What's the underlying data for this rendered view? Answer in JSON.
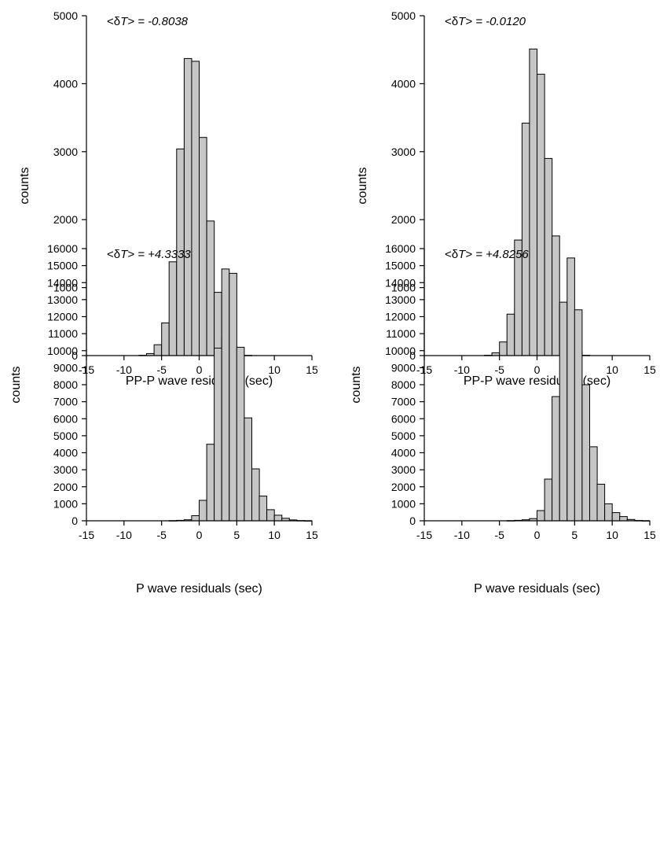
{
  "chart_data": [
    {
      "type": "bar",
      "annotation": {
        "prefix": "<δ",
        "var": "T",
        "suffix": "> = -0.8038"
      },
      "xlabel": "PP-P wave residuals (sec)",
      "ylabel": "counts",
      "xlim": [
        -15,
        15
      ],
      "ylim": [
        0,
        5000
      ],
      "xticks": [
        -15,
        -10,
        -5,
        0,
        5,
        10,
        15
      ],
      "yticks": [
        0,
        1000,
        2000,
        3000,
        4000,
        5000
      ],
      "bin_width": 1,
      "bins": [
        {
          "x0": -15,
          "count": 0
        },
        {
          "x0": -14,
          "count": 0
        },
        {
          "x0": -13,
          "count": 0
        },
        {
          "x0": -12,
          "count": 0
        },
        {
          "x0": -11,
          "count": 0
        },
        {
          "x0": -10,
          "count": 0
        },
        {
          "x0": -9,
          "count": 0
        },
        {
          "x0": -8,
          "count": 5
        },
        {
          "x0": -7,
          "count": 30
        },
        {
          "x0": -6,
          "count": 160
        },
        {
          "x0": -5,
          "count": 480
        },
        {
          "x0": -4,
          "count": 1380
        },
        {
          "x0": -3,
          "count": 3040
        },
        {
          "x0": -2,
          "count": 4370
        },
        {
          "x0": -1,
          "count": 4330
        },
        {
          "x0": 0,
          "count": 3210
        },
        {
          "x0": 1,
          "count": 1980
        },
        {
          "x0": 2,
          "count": 930
        },
        {
          "x0": 3,
          "count": 250
        },
        {
          "x0": 4,
          "count": 80
        },
        {
          "x0": 5,
          "count": 10
        },
        {
          "x0": 6,
          "count": 3
        },
        {
          "x0": 7,
          "count": 0
        },
        {
          "x0": 8,
          "count": 0
        },
        {
          "x0": 9,
          "count": 0
        },
        {
          "x0": 10,
          "count": 0
        },
        {
          "x0": 11,
          "count": 0
        },
        {
          "x0": 12,
          "count": 0
        },
        {
          "x0": 13,
          "count": 0
        },
        {
          "x0": 14,
          "count": 0
        }
      ]
    },
    {
      "type": "bar",
      "annotation": {
        "prefix": "<δ",
        "var": "T",
        "suffix": "> = -0.0120"
      },
      "xlabel": "PP-P wave residuals (sec)",
      "ylabel": "counts",
      "xlim": [
        -15,
        15
      ],
      "ylim": [
        0,
        5000
      ],
      "xticks": [
        -15,
        -10,
        -5,
        0,
        5,
        10,
        15
      ],
      "yticks": [
        0,
        1000,
        2000,
        3000,
        4000,
        5000
      ],
      "bin_width": 1,
      "bins": [
        {
          "x0": -15,
          "count": 0
        },
        {
          "x0": -14,
          "count": 0
        },
        {
          "x0": -13,
          "count": 0
        },
        {
          "x0": -12,
          "count": 0
        },
        {
          "x0": -11,
          "count": 0
        },
        {
          "x0": -10,
          "count": 0
        },
        {
          "x0": -9,
          "count": 0
        },
        {
          "x0": -8,
          "count": 0
        },
        {
          "x0": -7,
          "count": 5
        },
        {
          "x0": -6,
          "count": 40
        },
        {
          "x0": -5,
          "count": 200
        },
        {
          "x0": -4,
          "count": 610
        },
        {
          "x0": -3,
          "count": 1700
        },
        {
          "x0": -2,
          "count": 3420
        },
        {
          "x0": -1,
          "count": 4510
        },
        {
          "x0": 0,
          "count": 4140
        },
        {
          "x0": 1,
          "count": 2900
        },
        {
          "x0": 2,
          "count": 1760
        },
        {
          "x0": 3,
          "count": 740
        },
        {
          "x0": 4,
          "count": 200
        },
        {
          "x0": 5,
          "count": 60
        },
        {
          "x0": 6,
          "count": 5
        },
        {
          "x0": 7,
          "count": 0
        },
        {
          "x0": 8,
          "count": 0
        },
        {
          "x0": 9,
          "count": 0
        },
        {
          "x0": 10,
          "count": 0
        },
        {
          "x0": 11,
          "count": 0
        },
        {
          "x0": 12,
          "count": 0
        },
        {
          "x0": 13,
          "count": 0
        },
        {
          "x0": 14,
          "count": 0
        }
      ]
    },
    {
      "type": "bar",
      "annotation": {
        "prefix": "<δ",
        "var": "T",
        "suffix": "> = +4.3333"
      },
      "xlabel": "P wave residuals (sec)",
      "ylabel": "counts",
      "xlim": [
        -15,
        15
      ],
      "ylim": [
        0,
        16000
      ],
      "xticks": [
        -15,
        -10,
        -5,
        0,
        5,
        10,
        15
      ],
      "yticks": [
        0,
        1000,
        2000,
        3000,
        4000,
        5000,
        6000,
        7000,
        8000,
        9000,
        10000,
        11000,
        12000,
        13000,
        14000,
        15000,
        16000
      ],
      "bin_width": 1,
      "bins": [
        {
          "x0": -15,
          "count": 0
        },
        {
          "x0": -14,
          "count": 0
        },
        {
          "x0": -13,
          "count": 0
        },
        {
          "x0": -12,
          "count": 0
        },
        {
          "x0": -11,
          "count": 0
        },
        {
          "x0": -10,
          "count": 0
        },
        {
          "x0": -9,
          "count": 0
        },
        {
          "x0": -8,
          "count": 0
        },
        {
          "x0": -7,
          "count": 0
        },
        {
          "x0": -6,
          "count": 0
        },
        {
          "x0": -5,
          "count": 0
        },
        {
          "x0": -4,
          "count": 10
        },
        {
          "x0": -3,
          "count": 30
        },
        {
          "x0": -2,
          "count": 60
        },
        {
          "x0": -1,
          "count": 300
        },
        {
          "x0": 0,
          "count": 1200
        },
        {
          "x0": 1,
          "count": 4500
        },
        {
          "x0": 2,
          "count": 10150
        },
        {
          "x0": 3,
          "count": 14800
        },
        {
          "x0": 4,
          "count": 14550
        },
        {
          "x0": 5,
          "count": 10200
        },
        {
          "x0": 6,
          "count": 6050
        },
        {
          "x0": 7,
          "count": 3050
        },
        {
          "x0": 8,
          "count": 1450
        },
        {
          "x0": 9,
          "count": 650
        },
        {
          "x0": 10,
          "count": 330
        },
        {
          "x0": 11,
          "count": 150
        },
        {
          "x0": 12,
          "count": 50
        },
        {
          "x0": 13,
          "count": 15
        },
        {
          "x0": 14,
          "count": 5
        }
      ]
    },
    {
      "type": "bar",
      "annotation": {
        "prefix": "<δ",
        "var": "T",
        "suffix": "> = +4.8256"
      },
      "xlabel": "P wave residuals (sec)",
      "ylabel": "counts",
      "xlim": [
        -15,
        15
      ],
      "ylim": [
        0,
        16000
      ],
      "xticks": [
        -15,
        -10,
        -5,
        0,
        5,
        10,
        15
      ],
      "yticks": [
        0,
        1000,
        2000,
        3000,
        4000,
        5000,
        6000,
        7000,
        8000,
        9000,
        10000,
        11000,
        12000,
        13000,
        14000,
        15000,
        16000
      ],
      "bin_width": 1,
      "bins": [
        {
          "x0": -15,
          "count": 0
        },
        {
          "x0": -14,
          "count": 0
        },
        {
          "x0": -13,
          "count": 0
        },
        {
          "x0": -12,
          "count": 0
        },
        {
          "x0": -11,
          "count": 0
        },
        {
          "x0": -10,
          "count": 0
        },
        {
          "x0": -9,
          "count": 0
        },
        {
          "x0": -8,
          "count": 0
        },
        {
          "x0": -7,
          "count": 0
        },
        {
          "x0": -6,
          "count": 0
        },
        {
          "x0": -5,
          "count": 0
        },
        {
          "x0": -4,
          "count": 10
        },
        {
          "x0": -3,
          "count": 30
        },
        {
          "x0": -2,
          "count": 60
        },
        {
          "x0": -1,
          "count": 130
        },
        {
          "x0": 0,
          "count": 600
        },
        {
          "x0": 1,
          "count": 2450
        },
        {
          "x0": 2,
          "count": 7300
        },
        {
          "x0": 3,
          "count": 12850
        },
        {
          "x0": 4,
          "count": 15450
        },
        {
          "x0": 5,
          "count": 12400
        },
        {
          "x0": 6,
          "count": 8000
        },
        {
          "x0": 7,
          "count": 4350
        },
        {
          "x0": 8,
          "count": 2150
        },
        {
          "x0": 9,
          "count": 1000
        },
        {
          "x0": 10,
          "count": 480
        },
        {
          "x0": 11,
          "count": 250
        },
        {
          "x0": 12,
          "count": 80
        },
        {
          "x0": 13,
          "count": 20
        },
        {
          "x0": 14,
          "count": 5
        }
      ]
    }
  ]
}
